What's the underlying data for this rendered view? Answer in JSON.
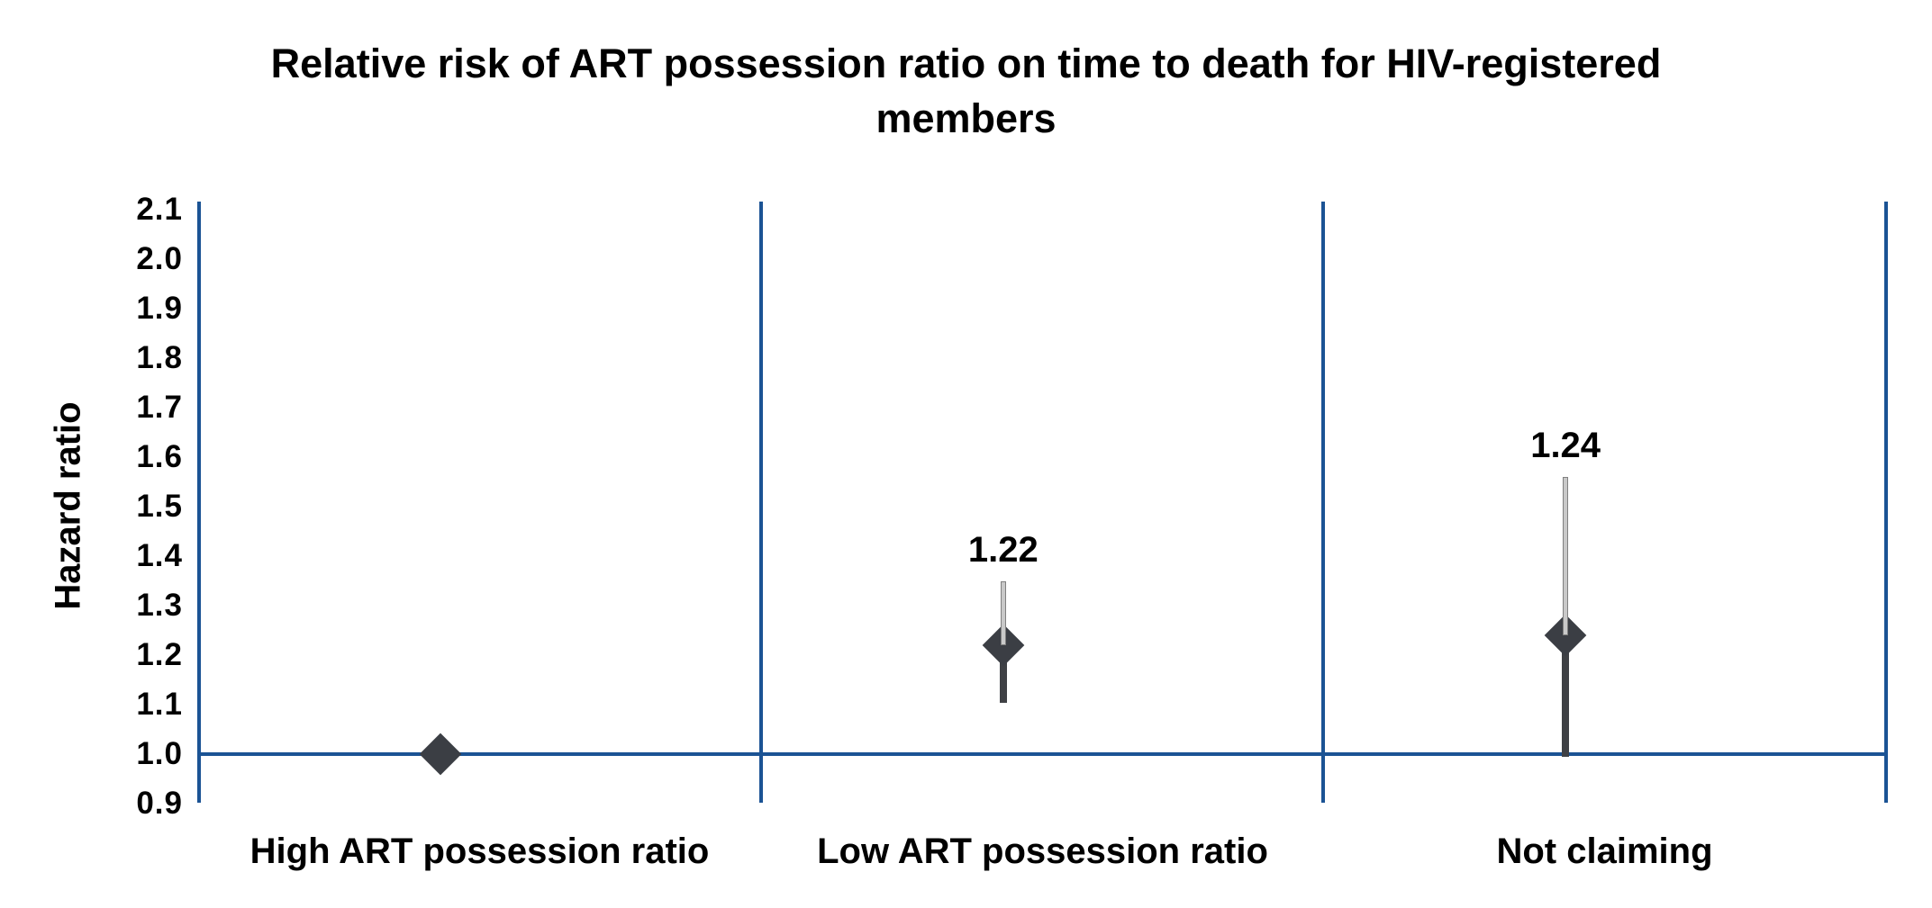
{
  "chart_data": {
    "type": "scatter",
    "subtype": "dot-and-whisker",
    "title": "Relative risk of ART possession ratio on time to death for HIV-registered members",
    "title_lines": [
      "Relative risk of ART possession ratio on time to death for HIV-registered",
      "members"
    ],
    "xlabel": "",
    "ylabel": "Hazard ratio",
    "ylim": [
      0.9,
      2.1
    ],
    "ytick_step": 0.1,
    "yticks": [
      "2.1",
      "2.0",
      "1.9",
      "1.8",
      "1.7",
      "1.6",
      "1.5",
      "1.4",
      "1.3",
      "1.2",
      "1.1",
      "1.0",
      "0.9"
    ],
    "reference_line": 1.0,
    "grid": false,
    "legend": false,
    "categories": [
      "High ART possession ratio",
      "Low ART possession ratio",
      "Not claiming"
    ],
    "points": [
      {
        "category": "High ART possession ratio",
        "value": 1.0,
        "ci_low": null,
        "ci_high": null,
        "label": ""
      },
      {
        "category": "Low ART possession ratio",
        "value": 1.22,
        "ci_low": 1.11,
        "ci_high": 1.35,
        "label": "1.22"
      },
      {
        "category": "Not claiming",
        "value": 1.24,
        "ci_low": 1.0,
        "ci_high": 1.56,
        "label": "1.24"
      }
    ],
    "colors": {
      "axis_blue": "#1b5394",
      "marker_dark": "#3b3e44",
      "whisker_upper_fill": "#c9c9c9",
      "whisker_upper_edge": "#808080",
      "whisker_lower": "#3f4145",
      "text": "#000000",
      "background": "#ffffff"
    }
  }
}
